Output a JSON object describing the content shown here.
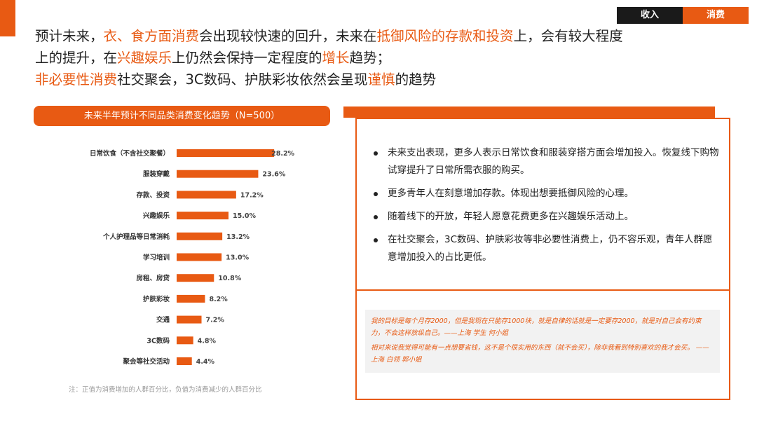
{
  "tabs": {
    "income": "收入",
    "consume": "消费"
  },
  "headline": {
    "line1": [
      {
        "t": "预计未来，",
        "h": false
      },
      {
        "t": "衣、食方面消费",
        "h": true
      },
      {
        "t": "会出现较快速的回升，未来在",
        "h": false
      },
      {
        "t": "抵御风险的存款和投资",
        "h": true
      },
      {
        "t": "上，会有较大程度",
        "h": false
      }
    ],
    "line2": [
      {
        "t": "上的提升，在",
        "h": false
      },
      {
        "t": "兴趣娱乐",
        "h": true
      },
      {
        "t": "上仍然会保持一定程度的",
        "h": false
      },
      {
        "t": "增长",
        "h": true
      },
      {
        "t": "趋势；",
        "h": false
      }
    ],
    "line3": [
      {
        "t": "非必要性消费",
        "h": true
      },
      {
        "t": "社交聚会，3C数码、护肤彩妆依然会呈现",
        "h": false
      },
      {
        "t": "谨慎",
        "h": true
      },
      {
        "t": "的趋势",
        "h": false
      }
    ]
  },
  "chart_header": "未来半年预计不同品类消费变化趋势（N=500）",
  "chart_data": {
    "type": "bar",
    "orientation": "horizontal",
    "categories": [
      "日常饮食（不含社交聚餐）",
      "服装穿戴",
      "存款、投资",
      "兴趣娱乐",
      "个人护理品等日常消耗",
      "学习培训",
      "房租、房贷",
      "护肤彩妆",
      "交通",
      "3C数码",
      "聚会等社交活动"
    ],
    "values": [
      28.2,
      23.6,
      17.2,
      15.0,
      13.2,
      13.0,
      10.8,
      8.2,
      7.2,
      4.8,
      4.4
    ],
    "labels": [
      "28.2%",
      "23.6%",
      "17.2%",
      "15.0%",
      "13.2%",
      "13.0%",
      "10.8%",
      "8.2%",
      "7.2%",
      "4.8%",
      "4.4%"
    ],
    "xlim": [
      0,
      30
    ],
    "grid": false,
    "color": "#E85A13"
  },
  "footnote": "注：正值为消费增加的人群百分比，负值为消费减少的人群百分比",
  "insights": [
    "未来支出表现，更多人表示日常饮食和服装穿搭方面会增加投入。恢复线下购物试穿提升了日常所需衣服的购买。",
    "更多青年人在刻意增加存款。体现出想要抵御风险的心理。",
    "随着线下的开放，年轻人愿意花费更多在兴趣娱乐活动上。",
    "在社交聚会，3C数码、护肤彩妆等非必要性消费上，仍不容乐观，青年人群愿意增加投入的占比更低。"
  ],
  "quotes": [
    "我的目标是每个月存2000，但是我现在只能存1000块，就是自律的话就是一定要存2000，就是对自己会有约束力，不会这样放纵自己。——上海 学生 何小姐",
    "相对来说我觉得可能有一点想要省钱，这不是个很实用的东西（就不会买），除非我看到特别喜欢的我才会买。 ——上海 白领 郭小姐"
  ],
  "colors": {
    "accent": "#E85A13",
    "dark": "#1a1a1a"
  }
}
